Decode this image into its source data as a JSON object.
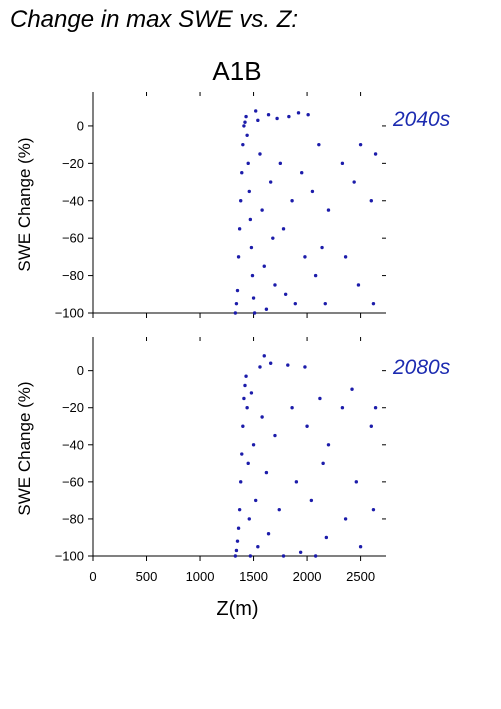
{
  "figure_title": "Change in max SWE vs. Z:",
  "scenario": "A1B",
  "colors": {
    "points": "#1c1caa",
    "period_label": "#1c2bb0",
    "axis": "#000000"
  },
  "chart_data": [
    {
      "type": "scatter",
      "panel_label": "2040s",
      "xlabel": "",
      "ylabel": "SWE Change (%)",
      "xlim": [
        0,
        2700
      ],
      "ylim": [
        -100,
        16
      ],
      "x_ticks": [
        0,
        500,
        1000,
        1500,
        2000,
        2500
      ],
      "y_ticks": [
        0,
        -20,
        -40,
        -60,
        -80,
        -100
      ],
      "y_tick_labels": [
        "0",
        "−20",
        "−40",
        "−60",
        "−80",
        "−100"
      ],
      "x_range_of_points": [
        1320,
        2640
      ],
      "points": [
        [
          1330,
          -100
        ],
        [
          1340,
          -95
        ],
        [
          1350,
          -88
        ],
        [
          1360,
          -70
        ],
        [
          1370,
          -55
        ],
        [
          1380,
          -40
        ],
        [
          1390,
          -25
        ],
        [
          1400,
          -10
        ],
        [
          1410,
          0
        ],
        [
          1420,
          2
        ],
        [
          1430,
          5
        ],
        [
          1440,
          -5
        ],
        [
          1450,
          -20
        ],
        [
          1460,
          -35
        ],
        [
          1470,
          -50
        ],
        [
          1480,
          -65
        ],
        [
          1490,
          -80
        ],
        [
          1500,
          -92
        ],
        [
          1510,
          -100
        ],
        [
          1520,
          8
        ],
        [
          1540,
          3
        ],
        [
          1560,
          -15
        ],
        [
          1580,
          -45
        ],
        [
          1600,
          -75
        ],
        [
          1620,
          -98
        ],
        [
          1640,
          6
        ],
        [
          1660,
          -30
        ],
        [
          1680,
          -60
        ],
        [
          1700,
          -85
        ],
        [
          1720,
          4
        ],
        [
          1750,
          -20
        ],
        [
          1780,
          -55
        ],
        [
          1800,
          -90
        ],
        [
          1830,
          5
        ],
        [
          1860,
          -40
        ],
        [
          1890,
          -95
        ],
        [
          1920,
          7
        ],
        [
          1950,
          -25
        ],
        [
          1980,
          -70
        ],
        [
          2010,
          6
        ],
        [
          2050,
          -35
        ],
        [
          2080,
          -80
        ],
        [
          2110,
          -10
        ],
        [
          2140,
          -65
        ],
        [
          2170,
          -95
        ],
        [
          2200,
          -45
        ],
        [
          2330,
          -20
        ],
        [
          2360,
          -70
        ],
        [
          2440,
          -30
        ],
        [
          2480,
          -85
        ],
        [
          2500,
          -10
        ],
        [
          2600,
          -40
        ],
        [
          2620,
          -95
        ],
        [
          2640,
          -15
        ]
      ]
    },
    {
      "type": "scatter",
      "panel_label": "2080s",
      "xlabel": "Z(m)",
      "ylabel": "SWE Change (%)",
      "xlim": [
        0,
        2700
      ],
      "ylim": [
        -100,
        16
      ],
      "x_ticks": [
        0,
        500,
        1000,
        1500,
        2000,
        2500
      ],
      "y_ticks": [
        0,
        -20,
        -40,
        -60,
        -80,
        -100
      ],
      "x_tick_labels": [
        "0",
        "500",
        "1000",
        "1500",
        "2000",
        "2500"
      ],
      "y_tick_labels": [
        "0",
        "−20",
        "−40",
        "−60",
        "−80",
        "−100"
      ],
      "x_range_of_points": [
        1320,
        2640
      ],
      "points": [
        [
          1330,
          -100
        ],
        [
          1340,
          -97
        ],
        [
          1350,
          -92
        ],
        [
          1360,
          -85
        ],
        [
          1370,
          -75
        ],
        [
          1380,
          -60
        ],
        [
          1390,
          -45
        ],
        [
          1400,
          -30
        ],
        [
          1410,
          -15
        ],
        [
          1420,
          -8
        ],
        [
          1430,
          -3
        ],
        [
          1440,
          -20
        ],
        [
          1450,
          -50
        ],
        [
          1460,
          -80
        ],
        [
          1470,
          -100
        ],
        [
          1480,
          -12
        ],
        [
          1500,
          -40
        ],
        [
          1520,
          -70
        ],
        [
          1540,
          -95
        ],
        [
          1560,
          2
        ],
        [
          1580,
          -25
        ],
        [
          1600,
          8
        ],
        [
          1620,
          -55
        ],
        [
          1640,
          -88
        ],
        [
          1660,
          4
        ],
        [
          1700,
          -35
        ],
        [
          1740,
          -75
        ],
        [
          1780,
          -100
        ],
        [
          1820,
          3
        ],
        [
          1860,
          -20
        ],
        [
          1900,
          -60
        ],
        [
          1940,
          -98
        ],
        [
          1980,
          2
        ],
        [
          2000,
          -30
        ],
        [
          2040,
          -70
        ],
        [
          2080,
          -100
        ],
        [
          2120,
          -15
        ],
        [
          2150,
          -50
        ],
        [
          2180,
          -90
        ],
        [
          2200,
          -40
        ],
        [
          2330,
          -20
        ],
        [
          2360,
          -80
        ],
        [
          2420,
          -10
        ],
        [
          2460,
          -60
        ],
        [
          2500,
          -95
        ],
        [
          2600,
          -30
        ],
        [
          2620,
          -75
        ],
        [
          2640,
          -20
        ]
      ]
    }
  ]
}
